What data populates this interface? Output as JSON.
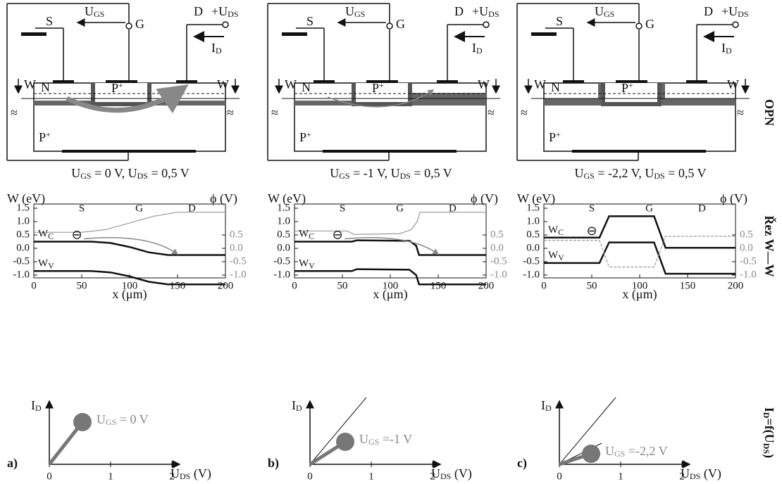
{
  "panels": [
    {
      "device": {
        "source": "S",
        "gate": "G",
        "drain": "D",
        "ugs": [
          "U",
          "GS"
        ],
        "uds": [
          "+U",
          "DS"
        ],
        "id": [
          "I",
          "D"
        ],
        "n": "N",
        "pgate": [
          "P",
          "+"
        ],
        "psub": [
          "P",
          "+"
        ],
        "wl": "W",
        "wr": "W",
        "break": "≈"
      },
      "condition": [
        "U",
        "GS",
        " = 0 V, U",
        "DS",
        " = 0,5 V"
      ],
      "band": {
        "ylabel": "W  (eV)",
        "y2label": "ϕ  (V)",
        "xlabel": "x  (μm)",
        "s": "S",
        "g": "G",
        "d": "D",
        "wc": [
          "W",
          "C"
        ],
        "wv": [
          "W",
          "V"
        ],
        "electron": "⊖",
        "xticks": [
          0,
          50,
          100,
          150,
          200
        ],
        "yticks": [
          1.5,
          {
            "value": 1.0,
            "label": "1.0"
          },
          0.5,
          {
            "value": 0,
            "label": "0.0"
          },
          -0.5,
          {
            "value": -1.0,
            "label": "-1.0"
          }
        ],
        "y2ticks": [
          0.5,
          {
            "value": 0,
            "label": "0.0"
          },
          -0.5,
          {
            "value": -1.0,
            "label": "-1.0"
          }
        ]
      },
      "iv": {
        "letter": "a)",
        "id": [
          "I",
          "D"
        ],
        "uds": [
          "U",
          "DS",
          " (V)"
        ],
        "ugs": [
          "U",
          "GS",
          " = 0 V"
        ],
        "xticks": [
          0,
          1,
          2
        ]
      }
    },
    {
      "device": {
        "source": "S",
        "gate": "G",
        "drain": "D",
        "ugs": [
          "U",
          "GS"
        ],
        "uds": [
          "+U",
          "DS"
        ],
        "id": [
          "I",
          "D"
        ],
        "n": "N",
        "pgate": [
          "P",
          "+"
        ],
        "psub": [
          "P",
          "+"
        ],
        "wl": "W",
        "wr": "W",
        "break": "≈"
      },
      "condition": [
        "U",
        "GS",
        " = -1 V, U",
        "DS",
        " = 0,5 V"
      ],
      "band": {
        "ylabel": "W  (eV)",
        "y2label": "ϕ  (V)",
        "xlabel": "x  (μm)",
        "s": "S",
        "g": "G",
        "d": "D",
        "wc": [
          "W",
          "C"
        ],
        "wv": [
          "W",
          "V"
        ],
        "electron": "⊖",
        "xticks": [
          0,
          50,
          100,
          150,
          200
        ],
        "yticks": [
          1.5,
          {
            "value": 1.0,
            "label": "1.0"
          },
          0.5,
          {
            "value": 0,
            "label": "0.0"
          },
          -0.5,
          {
            "value": -1.0,
            "label": "-1.0"
          }
        ],
        "y2ticks": [
          0.5,
          {
            "value": 0,
            "label": "0.0"
          },
          -0.5,
          {
            "value": -1.0,
            "label": "-1.0"
          }
        ]
      },
      "iv": {
        "letter": "b)",
        "id": [
          "I",
          "D"
        ],
        "uds": [
          "U",
          "DS",
          " (V)"
        ],
        "ugs": [
          "U",
          "GS",
          " =-1 V"
        ],
        "xticks": [
          0,
          1,
          2
        ]
      }
    },
    {
      "device": {
        "source": "S",
        "gate": "G",
        "drain": "D",
        "ugs": [
          "U",
          "GS"
        ],
        "uds": [
          "+U",
          "DS"
        ],
        "id": [
          "I",
          "D"
        ],
        "n": "N",
        "pgate": [
          "P",
          "+"
        ],
        "psub": [
          "P",
          "+"
        ],
        "wl": "W",
        "wr": "W",
        "break": "≈"
      },
      "condition": [
        "U",
        "GS",
        " = -2,2 V, U",
        "DS",
        " = 0,5 V"
      ],
      "band": {
        "ylabel": "W  (eV)",
        "y2label": "ϕ  (V)",
        "xlabel": "x  (μm)",
        "s": "S",
        "g": "G",
        "d": "D",
        "wc": [
          "W",
          "C"
        ],
        "wv": [
          "W",
          "V"
        ],
        "electron": "⊖",
        "xticks": [
          0,
          50,
          100,
          150,
          200
        ],
        "yticks": [
          1.5,
          {
            "value": 1.0,
            "label": "1.0"
          },
          0.5,
          {
            "value": 0,
            "label": "0.0"
          },
          -0.5,
          {
            "value": -1.0,
            "label": "-1.0"
          }
        ],
        "y2ticks": [
          0.5,
          {
            "value": 0,
            "label": "0.0"
          },
          -0.5,
          {
            "value": -1.0,
            "label": "-1.0"
          }
        ]
      },
      "iv": {
        "letter": "c)",
        "id": [
          "I",
          "D"
        ],
        "uds": [
          "U",
          "DS",
          " (V)"
        ],
        "ugs": [
          "U",
          "GS",
          " =-2,2 V"
        ],
        "xticks": [
          0,
          1,
          2
        ]
      }
    }
  ],
  "side": {
    "opn": "OPN",
    "cut": "Řez W—W",
    "ivf": [
      "I",
      "D",
      "=f(U",
      "DS",
      ")"
    ]
  }
}
